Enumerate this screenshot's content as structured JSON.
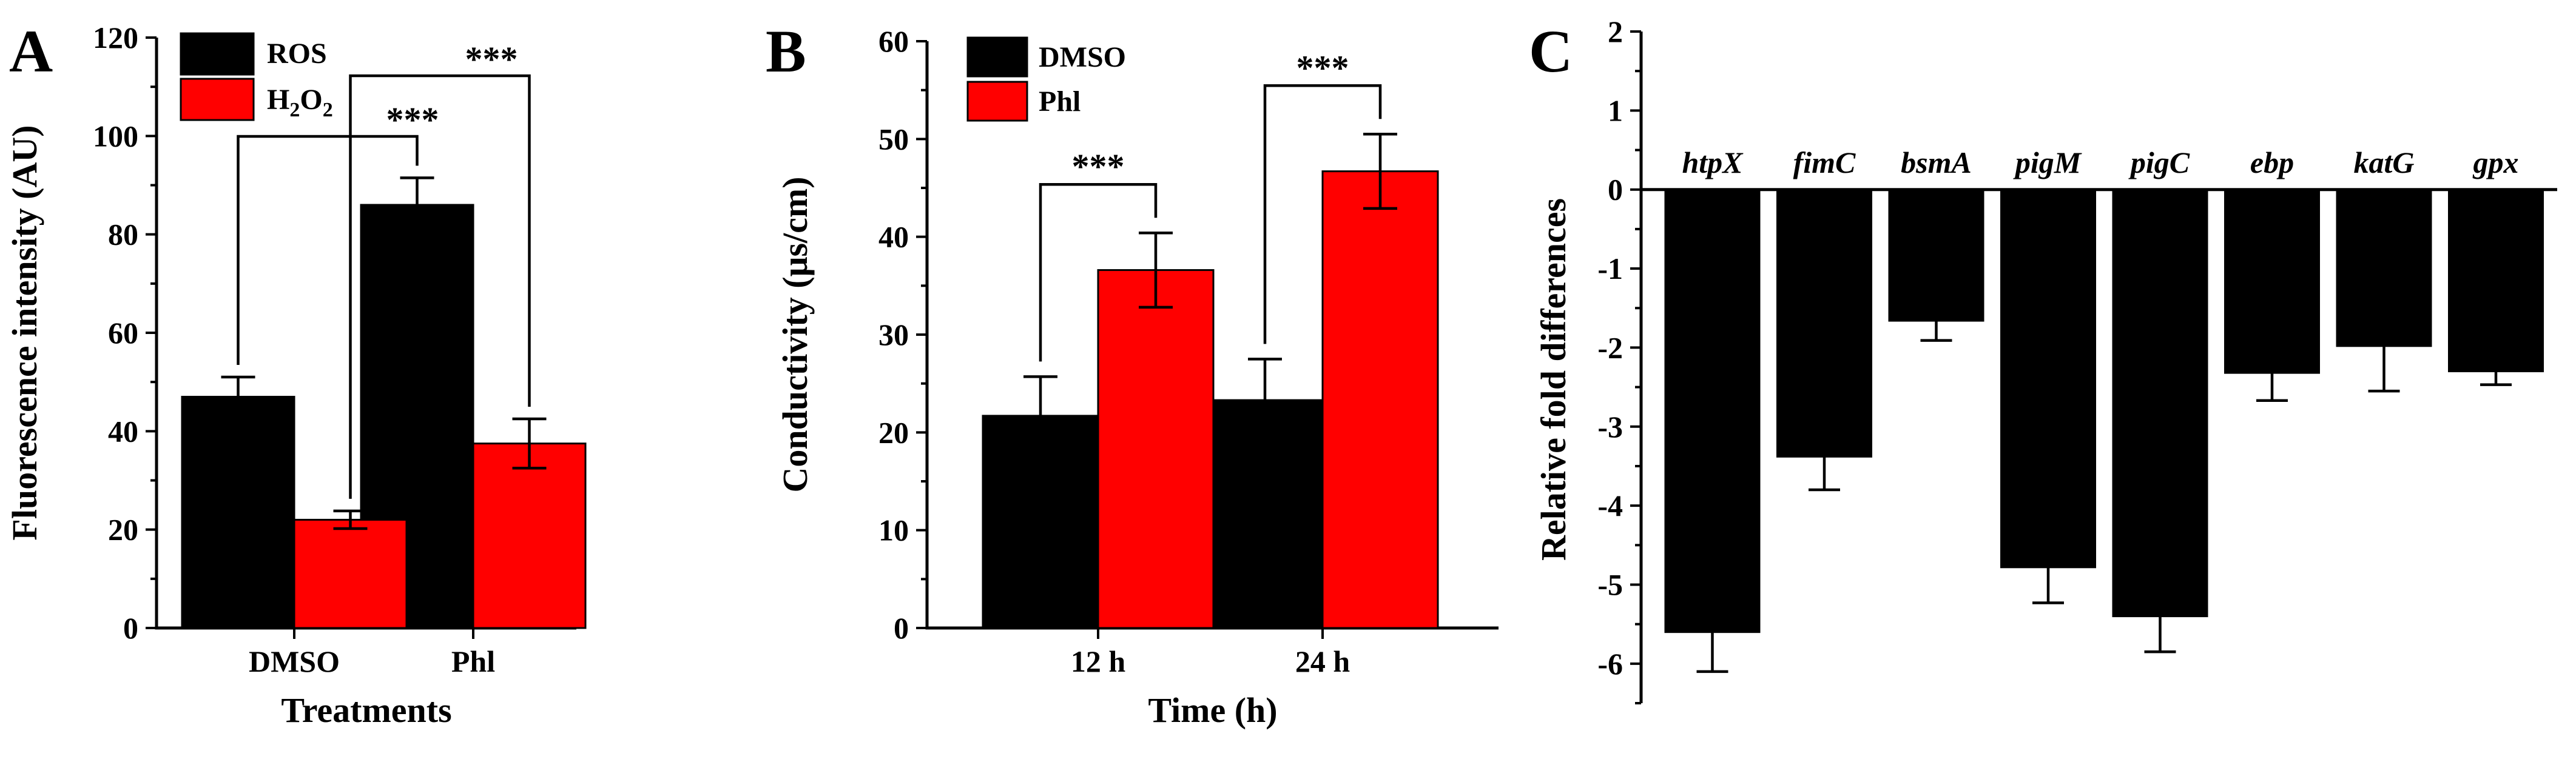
{
  "colors": {
    "black": "#000000",
    "red": "#ff0000"
  },
  "chart_data": [
    {
      "panel": "A",
      "type": "bar",
      "xlabel": "Treatments",
      "ylabel": "Fluorescence intensity (AU)",
      "ylim": [
        0,
        120
      ],
      "yticks": [
        "0",
        "20",
        "40",
        "60",
        "80",
        "100",
        "120"
      ],
      "categories": [
        "DMSO",
        "Phl"
      ],
      "legend_position": "top-left",
      "series": [
        {
          "name": "ROS",
          "color": "#000000",
          "values": [
            47,
            86
          ],
          "errors": [
            4,
            5.5
          ]
        },
        {
          "name_main": "H",
          "name_sub1": "2",
          "name_mid": "O",
          "name_sub2": "2",
          "color": "#ff0000",
          "values": [
            22,
            37.5
          ],
          "errors": [
            1.8,
            5
          ]
        }
      ],
      "significance": [
        {
          "label": "***",
          "from": [
            0,
            0
          ],
          "to": [
            1,
            0
          ]
        },
        {
          "label": "***",
          "from": [
            0,
            1
          ],
          "to": [
            1,
            1
          ]
        }
      ]
    },
    {
      "panel": "B",
      "type": "bar",
      "xlabel": "Time (h)",
      "ylabel": "Conductivity (μs/cm)",
      "ylim": [
        0,
        60
      ],
      "yticks": [
        "0",
        "10",
        "20",
        "30",
        "40",
        "50",
        "60"
      ],
      "categories": [
        "12 h",
        "24 h"
      ],
      "legend_position": "top-left",
      "series": [
        {
          "name": "DMSO",
          "color": "#000000",
          "values": [
            21.7,
            23.3
          ],
          "errors": [
            4,
            4.2
          ]
        },
        {
          "name": "Phl",
          "color": "#ff0000",
          "values": [
            36.6,
            46.7
          ],
          "errors": [
            3.8,
            3.8
          ]
        }
      ],
      "significance": [
        {
          "label": "***",
          "group": 0
        },
        {
          "label": "***",
          "group": 1
        }
      ]
    },
    {
      "panel": "C",
      "type": "bar",
      "ylabel": "Relative fold differences",
      "ylim": [
        -6.5,
        2
      ],
      "yticks": [
        "-6",
        "-5",
        "-4",
        "-3",
        "-2",
        "-1",
        "0",
        "1",
        "2"
      ],
      "categories": [
        "htpX",
        "fimC",
        "bsmA",
        "pigM",
        "pigC",
        "ebp",
        "katG",
        "gpx"
      ],
      "series": [
        {
          "color": "#000000",
          "values": [
            -5.6,
            -3.38,
            -1.66,
            -4.78,
            -5.4,
            -2.32,
            -1.98,
            -2.3
          ],
          "errors": [
            0.5,
            0.42,
            0.25,
            0.45,
            0.45,
            0.35,
            0.57,
            0.17
          ]
        }
      ]
    }
  ]
}
